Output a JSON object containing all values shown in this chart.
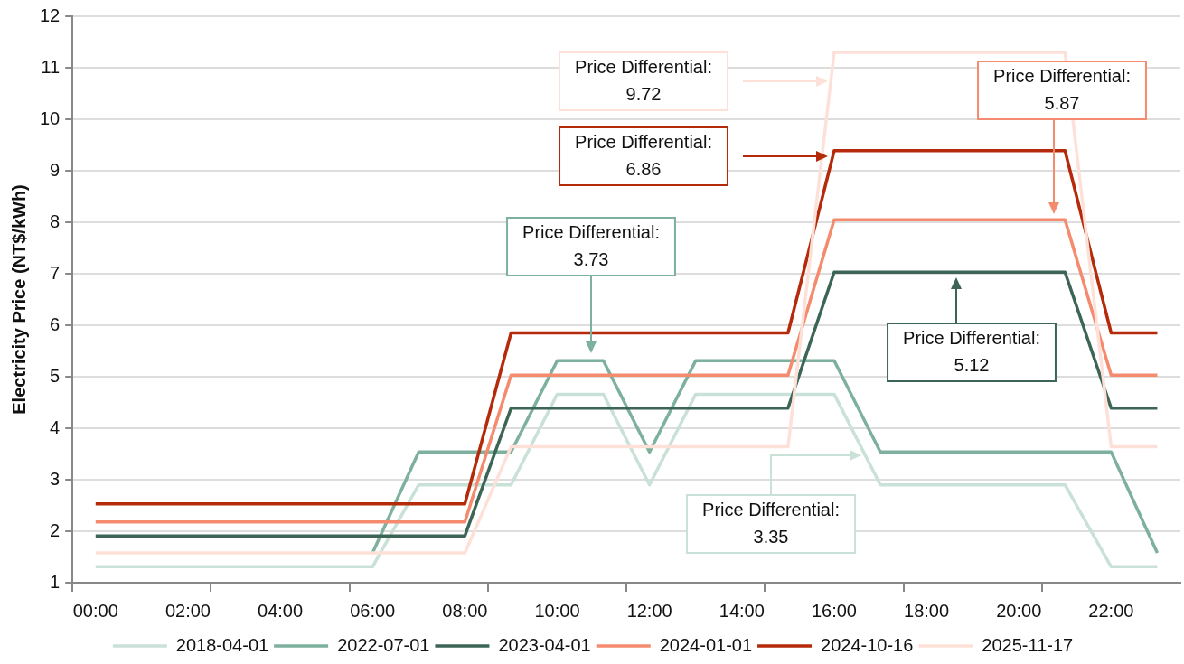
{
  "chart_data": {
    "type": "line",
    "ylabel": "Electricity Price (NT$/kWh)",
    "categories": [
      "00:00",
      null,
      "02:00",
      null,
      "04:00",
      null,
      "06:00",
      null,
      "08:00",
      null,
      "10:00",
      null,
      "12:00",
      null,
      "14:00",
      null,
      "16:00",
      null,
      "18:00",
      null,
      "20:00",
      null,
      "22:00",
      null
    ],
    "series": [
      {
        "name": "2018-04-01",
        "color": "#c9e1d7",
        "values": [
          1.31,
          1.31,
          1.31,
          1.31,
          1.31,
          1.31,
          1.31,
          2.9,
          2.9,
          2.9,
          4.66,
          4.66,
          2.9,
          4.66,
          4.66,
          4.66,
          4.66,
          2.9,
          2.9,
          2.9,
          2.9,
          2.9,
          1.31,
          1.31
        ]
      },
      {
        "name": "2022-07-01",
        "color": "#7db09d",
        "values": [
          null,
          null,
          null,
          null,
          null,
          null,
          1.58,
          3.54,
          3.54,
          3.54,
          5.31,
          5.31,
          3.54,
          5.31,
          5.31,
          5.31,
          5.31,
          3.54,
          3.54,
          3.54,
          3.54,
          3.54,
          3.54,
          1.58
        ]
      },
      {
        "name": "2023-04-01",
        "color": "#3c6555",
        "values": [
          1.91,
          1.91,
          1.91,
          1.91,
          1.91,
          1.91,
          1.91,
          1.91,
          1.91,
          4.39,
          4.39,
          4.39,
          4.39,
          4.39,
          4.39,
          4.39,
          7.03,
          7.03,
          7.03,
          7.03,
          7.03,
          7.03,
          4.39,
          4.39
        ]
      },
      {
        "name": "2024-01-01",
        "color": "#f58b6e",
        "values": [
          2.18,
          2.18,
          2.18,
          2.18,
          2.18,
          2.18,
          2.18,
          2.18,
          2.18,
          5.03,
          5.03,
          5.03,
          5.03,
          5.03,
          5.03,
          5.03,
          8.05,
          8.05,
          8.05,
          8.05,
          8.05,
          8.05,
          5.03,
          5.03
        ]
      },
      {
        "name": "2024-10-16",
        "color": "#b52a0a",
        "values": [
          2.53,
          2.53,
          2.53,
          2.53,
          2.53,
          2.53,
          2.53,
          2.53,
          2.53,
          5.85,
          5.85,
          5.85,
          5.85,
          5.85,
          5.85,
          5.85,
          9.39,
          9.39,
          9.39,
          9.39,
          9.39,
          9.39,
          5.85,
          5.85
        ]
      },
      {
        "name": "2025-11-17",
        "color": "#fde1d9",
        "values": [
          1.58,
          1.58,
          1.58,
          1.58,
          1.58,
          1.58,
          1.58,
          1.58,
          1.58,
          3.64,
          3.64,
          3.64,
          3.64,
          3.64,
          3.64,
          3.64,
          11.3,
          11.3,
          11.3,
          11.3,
          11.3,
          11.3,
          3.64,
          3.64
        ]
      }
    ],
    "ylim": [
      1,
      12
    ],
    "yticks": [
      1,
      2,
      3,
      4,
      5,
      6,
      7,
      8,
      9,
      10,
      11,
      12
    ],
    "grid": "y",
    "legend": "bottom",
    "marker": "none",
    "line_style": "solid",
    "annotations": [
      "Price Differential:\n9.72",
      "Price Differential:\n6.86",
      "Price Differential:\n3.73",
      "Price Differential:\n5.87",
      "Price Differential:\n5.12",
      "Price Differential:\n3.35"
    ]
  }
}
